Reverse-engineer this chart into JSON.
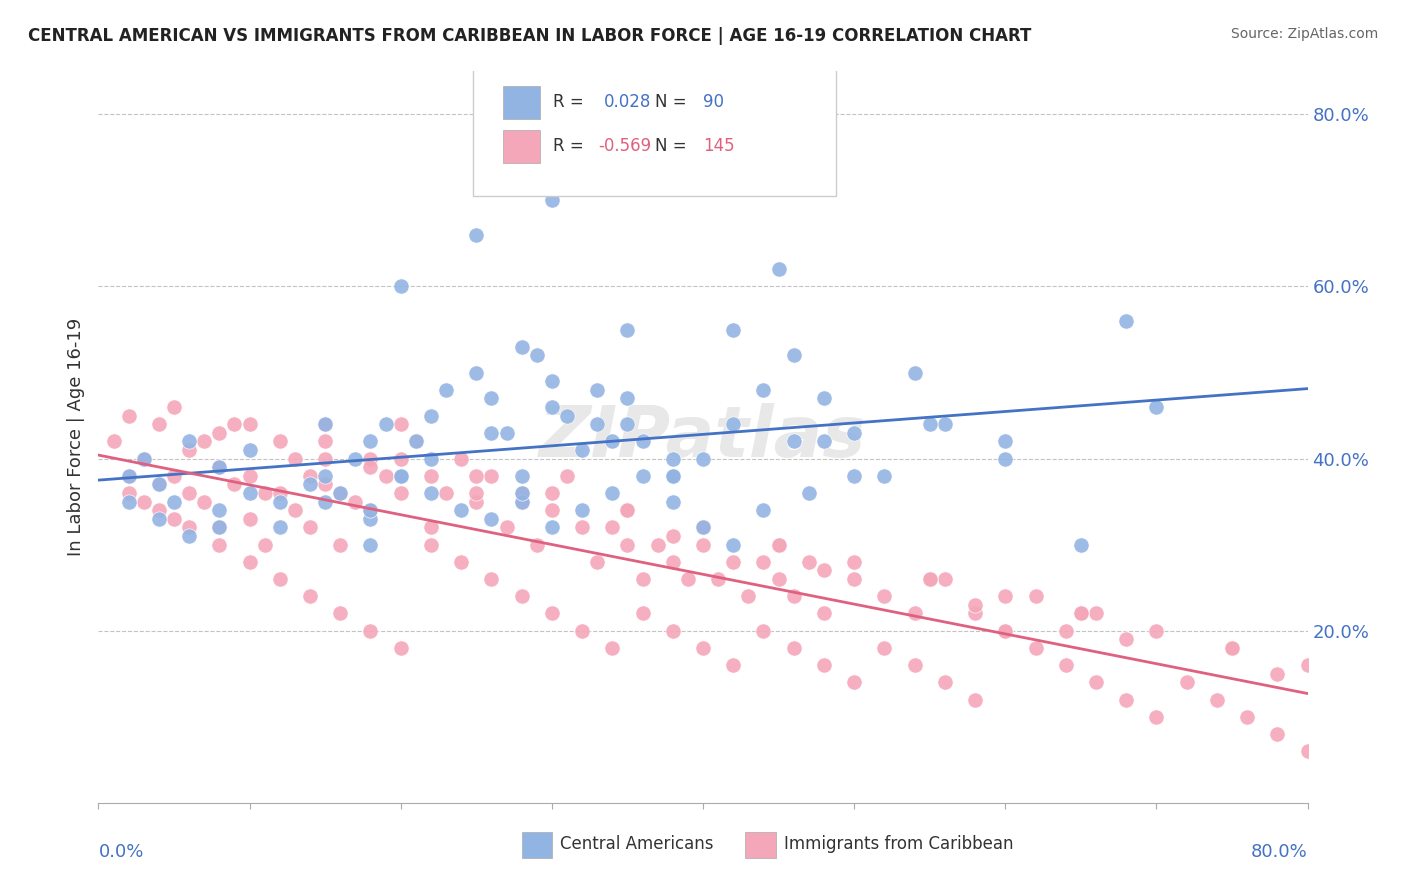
{
  "title": "CENTRAL AMERICAN VS IMMIGRANTS FROM CARIBBEAN IN LABOR FORCE | AGE 16-19 CORRELATION CHART",
  "source": "Source: ZipAtlas.com",
  "ylabel": "In Labor Force | Age 16-19",
  "ytick_values": [
    0.2,
    0.4,
    0.6,
    0.8
  ],
  "xlim": [
    0.0,
    0.8
  ],
  "ylim": [
    0.0,
    0.85
  ],
  "color_blue": "#92B4E3",
  "color_pink": "#F4A7B9",
  "color_line_blue": "#4472C4",
  "color_line_pink": "#E06080",
  "watermark": "ZIPatlas",
  "blue_scatter_x": [
    0.02,
    0.03,
    0.04,
    0.05,
    0.06,
    0.08,
    0.1,
    0.12,
    0.14,
    0.15,
    0.16,
    0.17,
    0.18,
    0.19,
    0.2,
    0.21,
    0.22,
    0.23,
    0.25,
    0.26,
    0.27,
    0.28,
    0.29,
    0.3,
    0.31,
    0.32,
    0.33,
    0.35,
    0.36,
    0.38,
    0.4,
    0.42,
    0.44,
    0.46,
    0.48,
    0.5,
    0.52,
    0.54,
    0.56,
    0.6,
    0.02,
    0.04,
    0.06,
    0.08,
    0.1,
    0.12,
    0.15,
    0.18,
    0.2,
    0.22,
    0.24,
    0.26,
    0.28,
    0.3,
    0.32,
    0.34,
    0.36,
    0.38,
    0.4,
    0.42,
    0.44,
    0.47,
    0.5,
    0.3,
    0.25,
    0.35,
    0.2,
    0.28,
    0.33,
    0.15,
    0.18,
    0.22,
    0.26,
    0.3,
    0.34,
    0.38,
    0.42,
    0.46,
    0.6,
    0.65,
    0.7,
    0.55,
    0.48,
    0.38,
    0.28,
    0.18,
    0.08,
    0.68,
    0.45,
    0.35
  ],
  "blue_scatter_y": [
    0.38,
    0.4,
    0.37,
    0.35,
    0.42,
    0.39,
    0.41,
    0.35,
    0.37,
    0.38,
    0.36,
    0.4,
    0.33,
    0.44,
    0.38,
    0.42,
    0.45,
    0.48,
    0.5,
    0.47,
    0.43,
    0.38,
    0.52,
    0.49,
    0.45,
    0.41,
    0.44,
    0.47,
    0.42,
    0.38,
    0.4,
    0.55,
    0.48,
    0.52,
    0.47,
    0.43,
    0.38,
    0.5,
    0.44,
    0.42,
    0.35,
    0.33,
    0.31,
    0.34,
    0.36,
    0.32,
    0.35,
    0.3,
    0.38,
    0.36,
    0.34,
    0.33,
    0.35,
    0.32,
    0.34,
    0.36,
    0.38,
    0.35,
    0.32,
    0.3,
    0.34,
    0.36,
    0.38,
    0.7,
    0.66,
    0.55,
    0.6,
    0.53,
    0.48,
    0.44,
    0.42,
    0.4,
    0.43,
    0.46,
    0.42,
    0.4,
    0.44,
    0.42,
    0.4,
    0.3,
    0.46,
    0.44,
    0.42,
    0.38,
    0.36,
    0.34,
    0.32,
    0.56,
    0.62,
    0.44
  ],
  "pink_scatter_x": [
    0.01,
    0.02,
    0.02,
    0.03,
    0.03,
    0.04,
    0.04,
    0.05,
    0.05,
    0.06,
    0.06,
    0.07,
    0.07,
    0.08,
    0.08,
    0.09,
    0.09,
    0.1,
    0.1,
    0.11,
    0.11,
    0.12,
    0.12,
    0.13,
    0.13,
    0.14,
    0.14,
    0.15,
    0.15,
    0.16,
    0.16,
    0.17,
    0.18,
    0.18,
    0.19,
    0.2,
    0.2,
    0.21,
    0.22,
    0.22,
    0.23,
    0.24,
    0.25,
    0.26,
    0.27,
    0.28,
    0.29,
    0.3,
    0.31,
    0.32,
    0.33,
    0.34,
    0.35,
    0.36,
    0.37,
    0.38,
    0.39,
    0.4,
    0.41,
    0.42,
    0.43,
    0.44,
    0.45,
    0.46,
    0.47,
    0.48,
    0.5,
    0.52,
    0.54,
    0.56,
    0.58,
    0.6,
    0.62,
    0.64,
    0.66,
    0.02,
    0.04,
    0.06,
    0.08,
    0.1,
    0.12,
    0.14,
    0.16,
    0.18,
    0.2,
    0.22,
    0.24,
    0.26,
    0.28,
    0.3,
    0.32,
    0.34,
    0.36,
    0.38,
    0.4,
    0.42,
    0.44,
    0.46,
    0.48,
    0.5,
    0.52,
    0.54,
    0.56,
    0.58,
    0.6,
    0.62,
    0.64,
    0.66,
    0.68,
    0.7,
    0.72,
    0.74,
    0.76,
    0.78,
    0.8,
    0.15,
    0.25,
    0.35,
    0.45,
    0.55,
    0.65,
    0.75,
    0.1,
    0.2,
    0.3,
    0.4,
    0.5,
    0.6,
    0.7,
    0.8,
    0.05,
    0.15,
    0.25,
    0.35,
    0.45,
    0.55,
    0.65,
    0.75,
    0.08,
    0.18,
    0.28,
    0.38,
    0.48,
    0.58,
    0.68,
    0.78
  ],
  "pink_scatter_y": [
    0.42,
    0.45,
    0.38,
    0.4,
    0.35,
    0.44,
    0.37,
    0.38,
    0.33,
    0.41,
    0.36,
    0.42,
    0.35,
    0.39,
    0.32,
    0.44,
    0.37,
    0.38,
    0.33,
    0.36,
    0.3,
    0.42,
    0.36,
    0.4,
    0.34,
    0.38,
    0.32,
    0.44,
    0.37,
    0.36,
    0.3,
    0.35,
    0.4,
    0.34,
    0.38,
    0.44,
    0.36,
    0.42,
    0.38,
    0.32,
    0.36,
    0.4,
    0.35,
    0.38,
    0.32,
    0.36,
    0.3,
    0.34,
    0.38,
    0.32,
    0.28,
    0.32,
    0.3,
    0.26,
    0.3,
    0.28,
    0.26,
    0.3,
    0.26,
    0.28,
    0.24,
    0.28,
    0.26,
    0.24,
    0.28,
    0.22,
    0.26,
    0.24,
    0.22,
    0.26,
    0.22,
    0.2,
    0.24,
    0.2,
    0.22,
    0.36,
    0.34,
    0.32,
    0.3,
    0.28,
    0.26,
    0.24,
    0.22,
    0.2,
    0.18,
    0.3,
    0.28,
    0.26,
    0.24,
    0.22,
    0.2,
    0.18,
    0.22,
    0.2,
    0.18,
    0.16,
    0.2,
    0.18,
    0.16,
    0.14,
    0.18,
    0.16,
    0.14,
    0.12,
    0.2,
    0.18,
    0.16,
    0.14,
    0.12,
    0.1,
    0.14,
    0.12,
    0.1,
    0.08,
    0.06,
    0.4,
    0.36,
    0.34,
    0.3,
    0.26,
    0.22,
    0.18,
    0.44,
    0.4,
    0.36,
    0.32,
    0.28,
    0.24,
    0.2,
    0.16,
    0.46,
    0.42,
    0.38,
    0.34,
    0.3,
    0.26,
    0.22,
    0.18,
    0.43,
    0.39,
    0.35,
    0.31,
    0.27,
    0.23,
    0.19,
    0.15
  ]
}
